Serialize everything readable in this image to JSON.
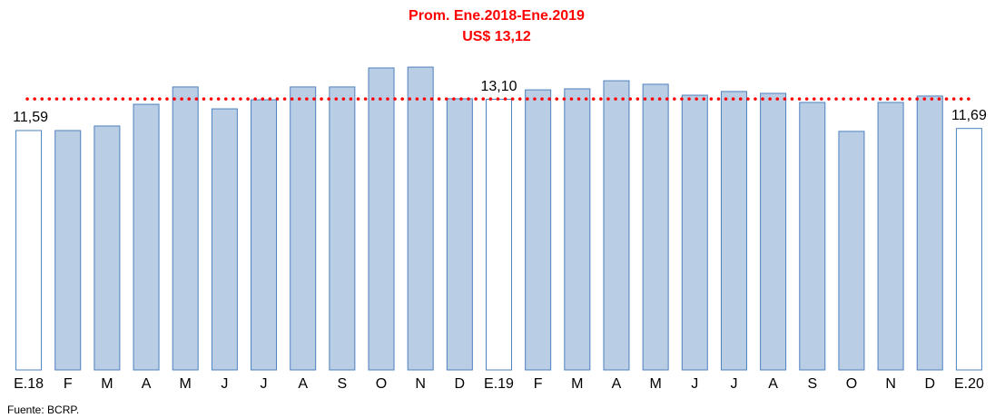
{
  "chart_data": {
    "type": "bar",
    "title": "Prom. Ene.2018-Ene.2019",
    "reference_line": {
      "value": 13.12,
      "label": "US$ 13,12",
      "color": "#ff0000"
    },
    "categories": [
      "E.18",
      "F",
      "M",
      "A",
      "M",
      "J",
      "J",
      "A",
      "S",
      "O",
      "N",
      "D",
      "E.19",
      "F",
      "M",
      "A",
      "M",
      "J",
      "J",
      "A",
      "S",
      "O",
      "N",
      "D",
      "E.20"
    ],
    "values": [
      11.59,
      11.59,
      11.81,
      12.86,
      13.7,
      12.64,
      13.08,
      13.7,
      13.7,
      14.62,
      14.66,
      13.13,
      13.1,
      13.56,
      13.61,
      14.0,
      13.83,
      13.3,
      13.48,
      13.39,
      12.95,
      11.55,
      12.95,
      13.26,
      11.69
    ],
    "value_labels": [
      "11,59",
      null,
      null,
      null,
      null,
      null,
      null,
      null,
      null,
      null,
      null,
      null,
      "13,10",
      null,
      null,
      null,
      null,
      null,
      null,
      null,
      null,
      null,
      null,
      null,
      "11,69"
    ],
    "colors": [
      "#ffffff",
      "#b9cde5",
      "#b9cde5",
      "#b9cde5",
      "#b9cde5",
      "#b9cde5",
      "#b9cde5",
      "#b9cde5",
      "#b9cde5",
      "#b9cde5",
      "#b9cde5",
      "#b9cde5",
      "#ffffff",
      "#b9cde5",
      "#b9cde5",
      "#b9cde5",
      "#b9cde5",
      "#b9cde5",
      "#b9cde5",
      "#b9cde5",
      "#b9cde5",
      "#b9cde5",
      "#b9cde5",
      "#b9cde5",
      "#ffffff"
    ],
    "edge_color": "#4f81bd",
    "ylim": [
      0,
      16
    ],
    "source": "Fuente: BCRP."
  }
}
